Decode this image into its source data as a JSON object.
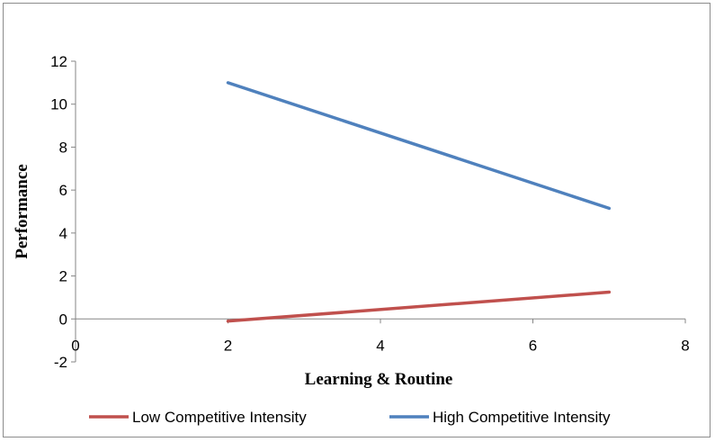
{
  "chart_data": {
    "type": "line",
    "title": "",
    "xlabel": "Learning & Routine",
    "ylabel": "Performance",
    "xlim": [
      0,
      8
    ],
    "ylim": [
      -2,
      12
    ],
    "xticks": [
      0,
      2,
      4,
      6,
      8
    ],
    "yticks": [
      -2,
      0,
      2,
      4,
      6,
      8,
      10,
      12
    ],
    "grid": false,
    "legend_position": "bottom",
    "series": [
      {
        "name": "Low Competitive Intensity",
        "color": "#c0504d",
        "x": [
          2,
          7
        ],
        "y": [
          -0.1,
          1.25
        ]
      },
      {
        "name": "High Competitive Intensity",
        "color": "#4f81bd",
        "x": [
          2,
          7
        ],
        "y": [
          11.0,
          5.15
        ]
      }
    ]
  }
}
